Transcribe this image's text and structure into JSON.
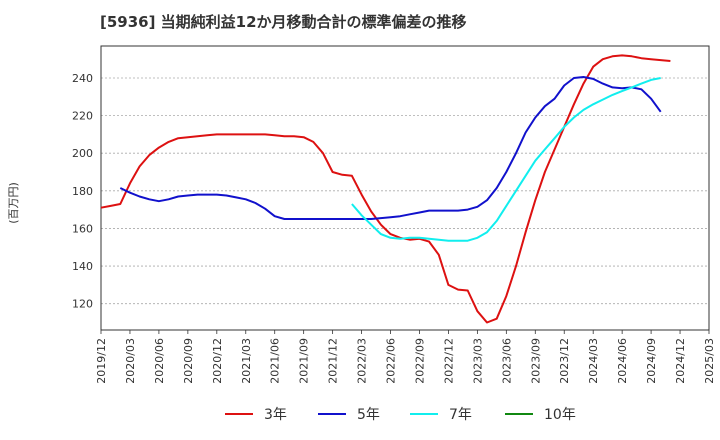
{
  "chart_data": {
    "type": "line",
    "title": "[5936]  当期純利益12か月移動合計の標準偏差の推移",
    "ylabel": "(百万円)",
    "xlabel": "",
    "ylim": [
      106,
      257
    ],
    "grid": "horizontal dashed",
    "legend_position": "bottom",
    "y_ticks": [
      120,
      140,
      160,
      180,
      200,
      220,
      240
    ],
    "x_ticks": [
      "2019/12",
      "2020/03",
      "2020/06",
      "2020/09",
      "2020/12",
      "2021/03",
      "2021/06",
      "2021/09",
      "2021/12",
      "2022/03",
      "2022/06",
      "2022/09",
      "2022/12",
      "2023/03",
      "2023/06",
      "2023/09",
      "2023/12",
      "2024/03",
      "2024/06",
      "2024/09",
      "2024/12",
      "2025/03"
    ],
    "series": [
      {
        "name": "3年",
        "color": "#dd1111",
        "start": "2019/12",
        "values": [
          171,
          172,
          173,
          184,
          193,
          199,
          203,
          206,
          208,
          208.5,
          209,
          209.5,
          210,
          210,
          210,
          210,
          210,
          210,
          209.5,
          209,
          209,
          208.5,
          206,
          200,
          190,
          188.5,
          188,
          178,
          169,
          162,
          157,
          155,
          154,
          154.5,
          153,
          146,
          130,
          127.5,
          127,
          116,
          110,
          112,
          124,
          140,
          158,
          175,
          190,
          202,
          214,
          226,
          237,
          246,
          250,
          251.5,
          252,
          251.5,
          250.5,
          250,
          249.5,
          249
        ]
      },
      {
        "name": "5年",
        "color": "#1111cc",
        "start": "2020/02",
        "values": [
          181.5,
          179,
          177,
          175.5,
          174.5,
          175.5,
          177,
          177.5,
          178,
          178,
          178,
          177.5,
          176.5,
          175.5,
          173.5,
          170.5,
          166.5,
          165,
          165,
          165,
          165,
          165,
          165,
          165,
          165,
          165,
          165,
          165.5,
          166,
          166.5,
          167.5,
          168.5,
          169.5,
          169.5,
          169.5,
          169.5,
          170,
          171.5,
          175,
          181.5,
          190,
          200,
          211,
          219,
          225,
          229,
          236,
          240,
          240.5,
          239.5,
          237,
          235,
          234.5,
          235,
          234,
          229,
          222
        ]
      },
      {
        "name": "7年",
        "color": "#11eeee",
        "start": "2022/02",
        "values": [
          173,
          167,
          162,
          157,
          155,
          154.5,
          155,
          155,
          154.5,
          154,
          153.5,
          153.5,
          153.5,
          155,
          158,
          164,
          172,
          180,
          188,
          196,
          202,
          208,
          214,
          219,
          223,
          226,
          228.5,
          231,
          233,
          235,
          237,
          239,
          240
        ]
      },
      {
        "name": "10年",
        "color": "#118811",
        "start": "2019/12",
        "values": []
      }
    ]
  }
}
